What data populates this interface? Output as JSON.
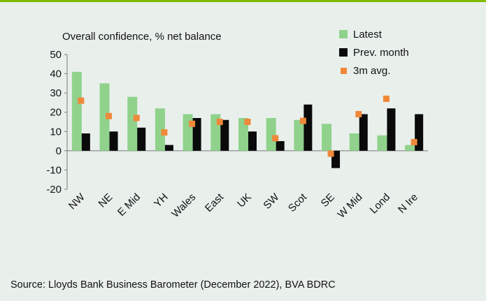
{
  "chart_data": {
    "type": "bar",
    "title": "Overall confidence, % net balance",
    "categories": [
      "NW",
      "NE",
      "E Mid",
      "YH",
      "Wales",
      "East",
      "UK",
      "SW",
      "Scot",
      "SE",
      "W Mid",
      "Lond",
      "N Ire"
    ],
    "series": [
      {
        "name": "Latest",
        "type": "bar",
        "color": "#90d28c",
        "values": [
          41,
          35,
          28,
          22,
          19,
          19,
          17,
          17,
          16,
          14,
          9,
          8,
          3
        ]
      },
      {
        "name": "Prev. month",
        "type": "bar",
        "color": "#0a0a0a",
        "values": [
          9,
          10,
          12,
          3,
          17,
          16,
          10,
          5,
          24,
          -9,
          19,
          22,
          19
        ]
      },
      {
        "name": "3m avg.",
        "type": "marker",
        "color": "#f0883a",
        "values": [
          26,
          18,
          17,
          9.5,
          14,
          15,
          15,
          6.5,
          15.5,
          -1.5,
          19,
          27,
          4.5
        ]
      }
    ],
    "ylim": [
      -20,
      50
    ],
    "yticks": [
      50,
      40,
      30,
      20,
      10,
      0,
      -10,
      -20
    ],
    "xlabel": "",
    "ylabel": ""
  },
  "legend": {
    "items": [
      {
        "label": "Latest",
        "color": "#90d28c"
      },
      {
        "label": "Prev. month",
        "color": "#0a0a0a"
      },
      {
        "label": "3m avg.",
        "color": "#f0883a"
      }
    ]
  },
  "source": "Source: Lloyds Bank Business Barometer (December 2022), BVA BDRC",
  "colors": {
    "accent": "#7fba00",
    "background": "#e9f0ec"
  }
}
